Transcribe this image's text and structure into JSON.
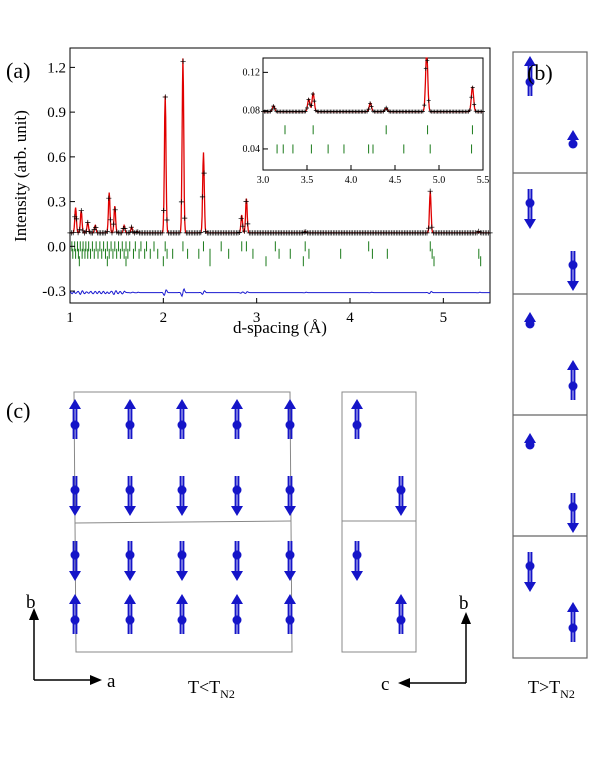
{
  "figure": {
    "panel_a": "(a)",
    "panel_b": "(b)",
    "panel_c": "(c)",
    "label_low_T": "T<T",
    "label_low_T_sub": "N2",
    "label_high_T": "T>T",
    "label_high_T_sub": "N2",
    "axis_a": "a",
    "axis_b": "b",
    "axis_c": "c"
  },
  "colors": {
    "observed": "#000000",
    "calculated": "#e00000",
    "difference": "#1a1ad0",
    "bragg_ticks": "#1a7a1a",
    "spin": "#1515c8"
  },
  "chart_data": [
    {
      "type": "line",
      "xlabel": "d-spacing (Å)",
      "ylabel": "Intensity (arb. unit)",
      "xlim": [
        1.0,
        5.5
      ],
      "ylim": [
        -0.38,
        1.33
      ],
      "xticks": [
        "1",
        "2",
        "3",
        "4",
        "5"
      ],
      "yticks": [
        "-0.3",
        "0.0",
        "0.3",
        "0.6",
        "0.9",
        "1.2"
      ],
      "background": 0.09,
      "peaks": [
        {
          "d": 1.06,
          "I": 0.26
        },
        {
          "d": 1.12,
          "I": 0.24
        },
        {
          "d": 1.19,
          "I": 0.16
        },
        {
          "d": 1.27,
          "I": 0.14
        },
        {
          "d": 1.42,
          "I": 0.36
        },
        {
          "d": 1.48,
          "I": 0.27
        },
        {
          "d": 1.58,
          "I": 0.14
        },
        {
          "d": 1.66,
          "I": 0.13
        },
        {
          "d": 1.72,
          "I": 0.1
        },
        {
          "d": 2.02,
          "I": 1.01
        },
        {
          "d": 2.21,
          "I": 1.26
        },
        {
          "d": 2.43,
          "I": 0.63
        },
        {
          "d": 2.84,
          "I": 0.21
        },
        {
          "d": 2.89,
          "I": 0.32
        },
        {
          "d": 3.52,
          "I": 0.1
        },
        {
          "d": 4.22,
          "I": 0.09
        },
        {
          "d": 4.86,
          "I": 0.37
        },
        {
          "d": 5.38,
          "I": 0.1
        }
      ],
      "bragg_rows_y": [
        0.0,
        -0.05,
        -0.1
      ],
      "bragg_rows": [
        [
          1.02,
          1.05,
          1.08,
          1.11,
          1.14,
          1.17,
          1.2,
          1.24,
          1.28,
          1.32,
          1.36,
          1.4,
          1.44,
          1.48,
          1.52,
          1.56,
          1.6,
          1.64,
          1.7,
          1.76,
          1.82,
          1.9,
          2.02,
          2.21,
          2.43,
          2.62,
          2.84,
          2.89,
          3.2,
          3.52,
          4.2,
          4.86
        ],
        [
          1.03,
          1.06,
          1.09,
          1.13,
          1.16,
          1.19,
          1.22,
          1.26,
          1.3,
          1.34,
          1.38,
          1.42,
          1.46,
          1.5,
          1.54,
          1.58,
          1.62,
          1.68,
          1.74,
          1.8,
          1.86,
          1.94,
          2.04,
          2.1,
          2.26,
          2.38,
          2.5,
          2.7,
          2.96,
          3.24,
          3.36,
          3.56,
          3.9,
          4.24,
          4.4,
          4.88,
          5.38
        ],
        [
          1.1,
          1.4,
          1.6,
          2.0,
          2.5,
          3.1,
          3.5,
          4.9,
          5.4
        ]
      ],
      "difference_offset": -0.31
    },
    {
      "type": "line",
      "title": "inset",
      "xlim": [
        3.0,
        5.5
      ],
      "ylim": [
        0.018,
        0.135
      ],
      "xticks": [
        "3.0",
        "3.5",
        "4.0",
        "4.5",
        "5.0",
        "5.5"
      ],
      "yticks": [
        "0.04",
        "0.08",
        "0.12"
      ],
      "background": 0.079,
      "peaks": [
        {
          "d": 3.12,
          "I": 0.085
        },
        {
          "d": 3.52,
          "I": 0.092
        },
        {
          "d": 3.57,
          "I": 0.098
        },
        {
          "d": 4.22,
          "I": 0.088
        },
        {
          "d": 4.4,
          "I": 0.083
        },
        {
          "d": 4.86,
          "I": 0.14
        },
        {
          "d": 5.38,
          "I": 0.105
        }
      ],
      "bragg_rows_y": [
        0.06,
        0.04
      ],
      "bragg_rows": [
        [
          3.25,
          3.57,
          4.4,
          4.87,
          5.38
        ],
        [
          3.16,
          3.23,
          3.34,
          3.55,
          3.74,
          3.92,
          4.2,
          4.25,
          4.6,
          4.9,
          5.37
        ]
      ]
    }
  ],
  "spin_structure": {
    "panel_c_left": {
      "rows": [
        1,
        -1,
        -1,
        1
      ],
      "columns": 5
    },
    "panel_c_right": {
      "rows": [
        [
          1,
          -1
        ],
        [
          -1,
          1
        ]
      ]
    },
    "panel_b": [
      [
        1,
        0.4
      ],
      [
        -1,
        -1
      ],
      [
        0.3,
        1
      ],
      [
        0.3,
        -1
      ],
      [
        -1,
        1
      ]
    ]
  }
}
